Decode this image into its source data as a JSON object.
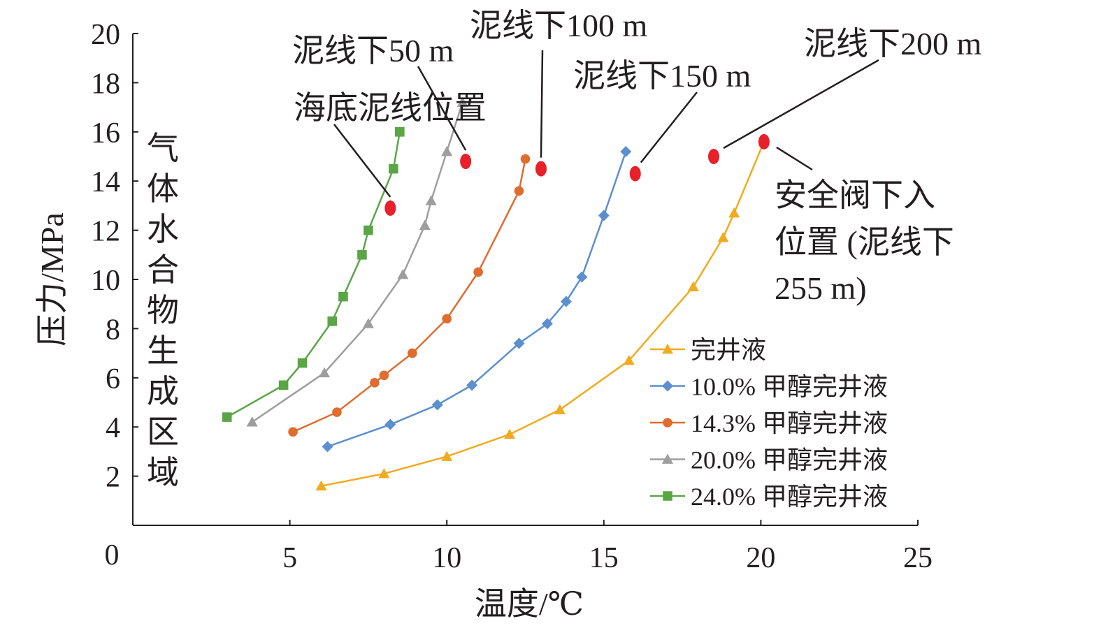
{
  "chart_data": {
    "type": "line",
    "xlabel": "温度/℃",
    "ylabel": "压力/MPa",
    "region_label": "气体水合物生成区域",
    "xlim": [
      0,
      25
    ],
    "ylim": [
      0,
      20
    ],
    "xticks": [
      5,
      10,
      15,
      20,
      25
    ],
    "yticks": [
      2,
      4,
      6,
      8,
      10,
      12,
      14,
      16,
      18,
      20
    ],
    "origin_label": "0",
    "legend_position": "bottom-right",
    "series": [
      {
        "name": "完井液",
        "color": "#f0ab1f",
        "marker": "triangle",
        "x": [
          6.0,
          8.0,
          10.0,
          12.0,
          13.6,
          15.8,
          17.85,
          18.8,
          19.15,
          20.1
        ],
        "y": [
          1.6,
          2.1,
          2.8,
          3.7,
          4.7,
          6.7,
          9.7,
          11.7,
          12.7,
          15.6
        ]
      },
      {
        "name": "10.0% 甲醇完井液",
        "color": "#5b8fd0",
        "marker": "diamond",
        "x": [
          6.2,
          8.2,
          9.7,
          10.8,
          12.3,
          13.2,
          13.8,
          14.3,
          15.0,
          15.7
        ],
        "y": [
          3.2,
          4.1,
          4.9,
          5.7,
          7.4,
          8.2,
          9.1,
          10.1,
          12.6,
          15.2
        ]
      },
      {
        "name": "14.3% 甲醇完井液",
        "color": "#e06c2e",
        "marker": "circle",
        "x": [
          5.1,
          6.5,
          7.7,
          8.0,
          8.9,
          10.0,
          11.0,
          12.3,
          12.5
        ],
        "y": [
          3.8,
          4.6,
          5.8,
          6.1,
          7.0,
          8.4,
          10.3,
          13.6,
          14.9
        ]
      },
      {
        "name": "20.0% 甲醇完井液",
        "color": "#9e9e9e",
        "marker": "triangle",
        "x": [
          3.8,
          6.1,
          7.5,
          8.6,
          9.3,
          9.5,
          10.0,
          10.5
        ],
        "y": [
          4.2,
          6.2,
          8.2,
          10.2,
          12.2,
          13.2,
          15.2,
          17.2
        ]
      },
      {
        "name": "24.0% 甲醇完井液",
        "color": "#5aa646",
        "marker": "square",
        "x": [
          3.0,
          4.8,
          5.4,
          6.35,
          6.7,
          7.3,
          7.5,
          8.3,
          8.5
        ],
        "y": [
          4.4,
          5.7,
          6.6,
          8.3,
          9.3,
          11.0,
          12.0,
          14.5,
          16.0
        ]
      }
    ],
    "annotations": [
      {
        "text": "海底泥线位置",
        "x": 8.2,
        "y": 12.9
      },
      {
        "text": "泥线下50 m",
        "x": 10.6,
        "y": 14.8
      },
      {
        "text": "泥线下100 m",
        "x": 13.0,
        "y": 14.5
      },
      {
        "text": "泥线下150 m",
        "x": 16.0,
        "y": 14.3
      },
      {
        "text": "泥线下200 m",
        "x": 18.5,
        "y": 15.0
      },
      {
        "text": "安全阀下入",
        "text2": "位置 (泥线下",
        "text3": "255 m)",
        "x": 20.1,
        "y": 15.6
      }
    ],
    "marker_color": "#e8202a"
  }
}
